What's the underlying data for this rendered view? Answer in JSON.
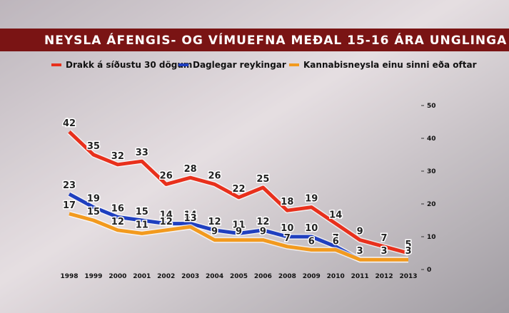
{
  "chart_data": {
    "type": "line",
    "title": "NEYSLA ÁFENGIS- OG VÍMUEFNA MEÐAL 15-16 ÁRA UNGLINGA",
    "categories": [
      "1998",
      "1999",
      "2000",
      "2001",
      "2002",
      "2003",
      "2004",
      "2005",
      "2006",
      "2008",
      "2009",
      "2010",
      "2011",
      "2012",
      "2013"
    ],
    "series": [
      {
        "name": "Drakk á síðustu 30 dögum",
        "color": "#e8301c",
        "values": [
          42,
          35,
          32,
          33,
          26,
          28,
          26,
          22,
          25,
          18,
          19,
          14,
          9,
          7,
          5
        ]
      },
      {
        "name": "Daglegar reykingar",
        "color": "#1f3fbf",
        "values": [
          23,
          19,
          16,
          15,
          14,
          14,
          12,
          11,
          12,
          10,
          10,
          7,
          3,
          3,
          3
        ]
      },
      {
        "name": "Kannabisneysla einu sinni eða oftar",
        "color": "#f29a1e",
        "values": [
          17,
          15,
          12,
          11,
          12,
          13,
          9,
          9,
          9,
          7,
          6,
          6,
          3,
          3,
          3
        ]
      }
    ],
    "ylim": [
      0,
      50
    ],
    "yticks": [
      0,
      10,
      20,
      30,
      40,
      50
    ]
  }
}
